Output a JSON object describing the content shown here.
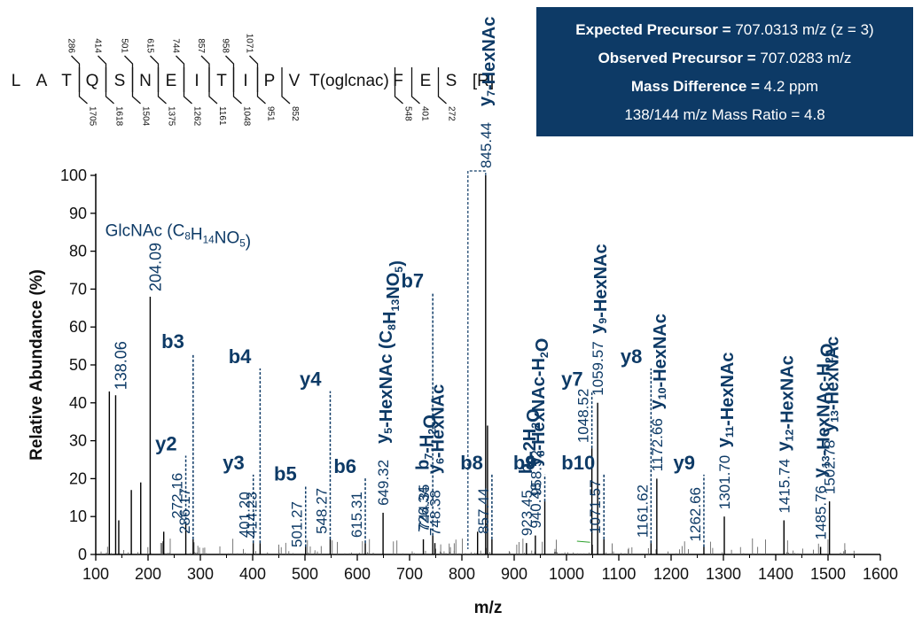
{
  "info": {
    "expected_label": "Expected Precursor =",
    "expected_value": "707.0313 m/z (z = 3)",
    "observed_label": "Observed Precursor =",
    "observed_value": "707.0283 m/z",
    "massdiff_label": "Mass Difference =",
    "massdiff_value": "4.2 ppm",
    "ratio_text": "138/144 m/z Mass Ratio = 4.8"
  },
  "sequence": {
    "residues": [
      "L",
      "A",
      "T",
      "Q",
      "S",
      "N",
      "E",
      "I",
      "T",
      "I",
      "P",
      "V",
      "T(oglcnac)",
      "F",
      "E",
      "S",
      "[R]"
    ],
    "b_ions": [
      "286",
      "414",
      "501",
      "615",
      "744",
      "857",
      "958",
      "1071"
    ],
    "y_ions": [
      "1705",
      "1618",
      "1504",
      "1375",
      "1262",
      "1161",
      "1048",
      "951",
      "852",
      "548",
      "401",
      "272"
    ]
  },
  "colors": {
    "annotation": "#0d3a66",
    "peak": "#000000",
    "box": "#0d3a66",
    "noise_green": "#2ca02c"
  },
  "chart_data": {
    "type": "bar",
    "title": "",
    "xlabel": "m/z",
    "ylabel": "Relative Abundance (%)",
    "xlim": [
      100,
      1600
    ],
    "ylim": [
      0,
      100
    ],
    "xticks": [
      100,
      200,
      300,
      400,
      500,
      600,
      700,
      800,
      900,
      1000,
      1100,
      1200,
      1300,
      1400,
      1500,
      1600
    ],
    "yticks": [
      0,
      10,
      20,
      30,
      40,
      50,
      60,
      70,
      80,
      90,
      100
    ],
    "peaks": [
      {
        "mz": 138.06,
        "intensity": 42
      },
      {
        "mz": 126,
        "intensity": 43
      },
      {
        "mz": 144,
        "intensity": 9
      },
      {
        "mz": 168,
        "intensity": 17
      },
      {
        "mz": 186,
        "intensity": 19
      },
      {
        "mz": 204.09,
        "intensity": 68
      },
      {
        "mz": 230,
        "intensity": 6
      },
      {
        "mz": 272.16,
        "intensity": 8
      },
      {
        "mz": 286.17,
        "intensity": 4
      },
      {
        "mz": 401.2,
        "intensity": 3
      },
      {
        "mz": 414.23,
        "intensity": 3
      },
      {
        "mz": 501.27,
        "intensity": 2
      },
      {
        "mz": 548.27,
        "intensity": 4
      },
      {
        "mz": 615.31,
        "intensity": 3
      },
      {
        "mz": 649.32,
        "intensity": 11
      },
      {
        "mz": 726.34,
        "intensity": 4
      },
      {
        "mz": 744.35,
        "intensity": 5
      },
      {
        "mz": 748.38,
        "intensity": 3
      },
      {
        "mz": 830,
        "intensity": 6
      },
      {
        "mz": 845.44,
        "intensity": 100
      },
      {
        "mz": 849,
        "intensity": 34
      },
      {
        "mz": 857.44,
        "intensity": 4
      },
      {
        "mz": 923.45,
        "intensity": 3
      },
      {
        "mz": 940.48,
        "intensity": 5
      },
      {
        "mz": 958.52,
        "intensity": 14
      },
      {
        "mz": 1048.52,
        "intensity": 28
      },
      {
        "mz": 1059.57,
        "intensity": 40
      },
      {
        "mz": 1071.57,
        "intensity": 4
      },
      {
        "mz": 1161.62,
        "intensity": 3
      },
      {
        "mz": 1172.66,
        "intensity": 20
      },
      {
        "mz": 1262.66,
        "intensity": 2
      },
      {
        "mz": 1301.7,
        "intensity": 10
      },
      {
        "mz": 1415.74,
        "intensity": 9
      },
      {
        "mz": 1485.76,
        "intensity": 2
      },
      {
        "mz": 1502.78,
        "intensity": 14
      }
    ],
    "annotations": [
      {
        "kind": "formula",
        "mz": 118,
        "y": 84,
        "label": "GlcNAc (C8H14NO5)",
        "anchor": "start"
      },
      {
        "kind": "value",
        "mz": 138.06,
        "label": "138.06"
      },
      {
        "kind": "value",
        "mz": 204.09,
        "label": "204.09"
      },
      {
        "kind": "ion",
        "mz": 272.16,
        "label": "y2",
        "value": "272.16",
        "y": 27
      },
      {
        "kind": "ion",
        "mz": 286.17,
        "label": "b3",
        "value": "286.17",
        "y": 54
      },
      {
        "kind": "ion",
        "mz": 401.2,
        "label": "y3",
        "value": "401.20",
        "y": 22
      },
      {
        "kind": "ion",
        "mz": 414.23,
        "label": "b4",
        "value": "414.23",
        "y": 50
      },
      {
        "kind": "ion",
        "mz": 501.27,
        "label": "b5",
        "value": "501.27",
        "y": 19
      },
      {
        "kind": "ion",
        "mz": 548.27,
        "label": "y4",
        "value": "548.27",
        "y": 44
      },
      {
        "kind": "ion",
        "mz": 615.31,
        "label": "b6",
        "value": "615.31",
        "y": 21
      },
      {
        "kind": "ionv",
        "mz": 649.32,
        "label": "y5-HexNAc (C8H13NO5)",
        "value": "649.32"
      },
      {
        "kind": "ionv",
        "mz": 726.34,
        "label": "b7-H2O",
        "value": "726.34"
      },
      {
        "kind": "ion",
        "mz": 744.35,
        "label": "b7",
        "value": "744.35",
        "y": 70
      },
      {
        "kind": "ionv",
        "mz": 748.38,
        "label": "y6-HexNAc",
        "value": "748.38"
      },
      {
        "kind": "ionv",
        "mz": 845.44,
        "label": "y7-HexNAc",
        "value": "845.44"
      },
      {
        "kind": "ion",
        "mz": 857.44,
        "label": "b8",
        "value": "857.44",
        "y": 22
      },
      {
        "kind": "ionv",
        "mz": 923.45,
        "label": "b9-2H2O",
        "value": "923.45"
      },
      {
        "kind": "ionv",
        "mz": 940.48,
        "label": "y8-HexNAc-H2O",
        "value": "940.48"
      },
      {
        "kind": "ion",
        "mz": 958.52,
        "label": "b9",
        "value": "958.52",
        "y": 22
      },
      {
        "kind": "ion",
        "mz": 1048.52,
        "label": "y7",
        "value": "1048.52",
        "y": 44
      },
      {
        "kind": "ionv",
        "mz": 1059.57,
        "label": "y9-HexNAc",
        "value": "1059.57"
      },
      {
        "kind": "ion",
        "mz": 1071.57,
        "label": "b10",
        "value": "1071.57",
        "y": 22
      },
      {
        "kind": "ionv",
        "mz": 1172.66,
        "label": "y10-HexNAc",
        "value": "1172.66"
      },
      {
        "kind": "ion",
        "mz": 1161.62,
        "label": "y8",
        "value": "1161.62",
        "y": 50
      },
      {
        "kind": "ion",
        "mz": 1262.66,
        "label": "y9",
        "value": "1262.66",
        "y": 22
      },
      {
        "kind": "ionv",
        "mz": 1301.7,
        "label": "y11-HexNAc",
        "value": "1301.70"
      },
      {
        "kind": "ionv",
        "mz": 1415.74,
        "label": "y12-HexNAc",
        "value": "1415.74"
      },
      {
        "kind": "ionv",
        "mz": 1485.76,
        "label": "y13-HexNAc-H2O",
        "value": "1485.76"
      },
      {
        "kind": "ionv",
        "mz": 1502.78,
        "label": "y13-HexNAc",
        "value": "1502.78"
      }
    ]
  }
}
